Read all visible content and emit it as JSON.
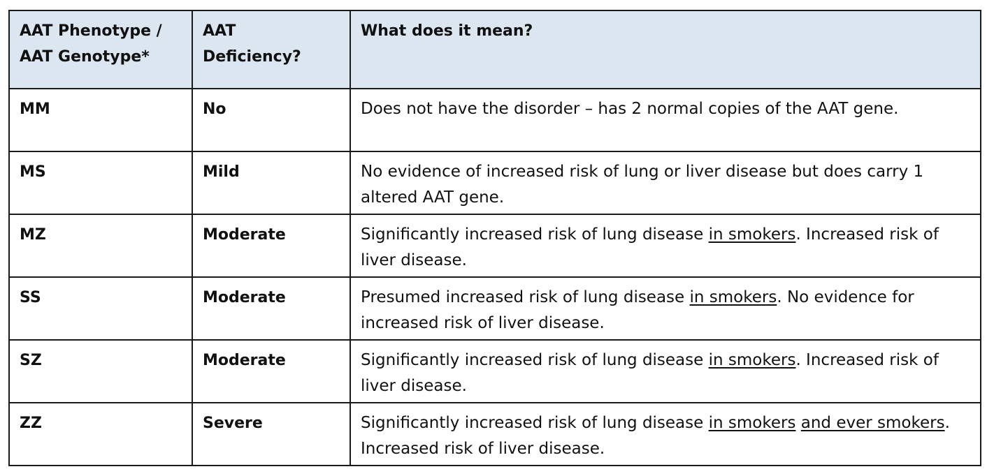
{
  "table": {
    "headers": [
      {
        "lines": [
          "AAT Phenotype /",
          "AAT Genotype*"
        ]
      },
      {
        "lines": [
          "AAT",
          "Deficiency?"
        ]
      },
      {
        "lines": [
          "What does it mean?"
        ]
      }
    ],
    "rows": [
      {
        "genotype": "MM",
        "deficiency": "No",
        "meaning": [
          {
            "text": "Does not have the disorder – has 2 normal copies of the AAT gene.",
            "u": false
          }
        ]
      },
      {
        "genotype": "MS",
        "deficiency": "Mild",
        "meaning": [
          {
            "text": "No evidence of increased risk of lung or liver disease but does carry 1 altered AAT gene.",
            "u": false
          }
        ]
      },
      {
        "genotype": "MZ",
        "deficiency": "Moderate",
        "meaning": [
          {
            "text": "Significantly increased risk of lung disease ",
            "u": false
          },
          {
            "text": "in smokers",
            "u": true
          },
          {
            "text": ". Increased risk of liver disease.",
            "u": false
          }
        ]
      },
      {
        "genotype": "SS",
        "deficiency": "Moderate",
        "meaning": [
          {
            "text": "Presumed increased risk of lung disease ",
            "u": false
          },
          {
            "text": "in smokers",
            "u": true
          },
          {
            "text": ". No evidence for increased risk of liver disease.",
            "u": false
          }
        ]
      },
      {
        "genotype": "SZ",
        "deficiency": "Moderate",
        "meaning": [
          {
            "text": "Significantly increased risk of lung disease ",
            "u": false
          },
          {
            "text": "in smokers",
            "u": true
          },
          {
            "text": ". Increased risk of liver disease.",
            "u": false
          }
        ]
      },
      {
        "genotype": "ZZ",
        "deficiency": "Severe",
        "meaning": [
          {
            "text": "Significantly increased risk of lung disease ",
            "u": false
          },
          {
            "text": "in smokers",
            "u": true
          },
          {
            "text": " ",
            "u": false
          },
          {
            "text": "and ever smokers",
            "u": true
          },
          {
            "text": ". Increased risk of liver disease.",
            "u": false
          }
        ]
      }
    ]
  },
  "colors": {
    "header_bg": "#dce6f1",
    "border": "#1a1a1a",
    "text": "#111111"
  }
}
